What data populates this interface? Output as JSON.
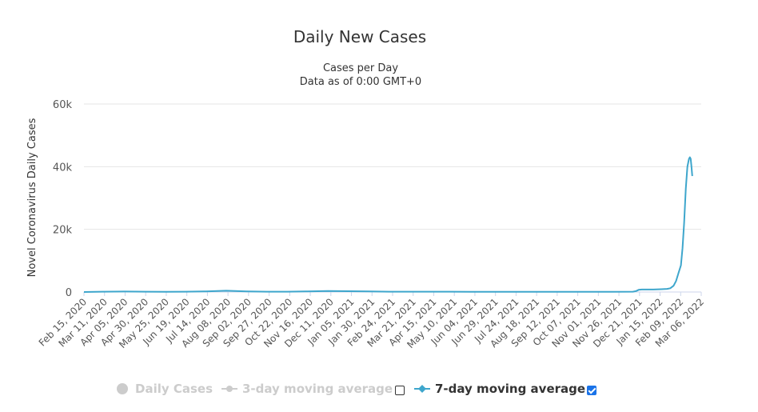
{
  "chart_data": {
    "type": "line",
    "title": "Daily New Cases",
    "subtitle_lines": [
      "Cases per Day",
      "Data as of 0:00 GMT+0"
    ],
    "ylabel": "Novel Coronavirus Daily Cases",
    "xlabel": "",
    "ylim": [
      0,
      60000
    ],
    "y_ticks": [
      0,
      20000,
      40000,
      60000
    ],
    "y_tick_labels": [
      "0",
      "20k",
      "40k",
      "60k"
    ],
    "x_range": [
      "2020-02-15",
      "2022-03-15"
    ],
    "x_tick_labels": [
      "Feb 15, 2020",
      "Mar 11, 2020",
      "Apr 05, 2020",
      "Apr 30, 2020",
      "May 25, 2020",
      "Jun 19, 2020",
      "Jul 14, 2020",
      "Aug 08, 2020",
      "Sep 02, 2020",
      "Sep 27, 2020",
      "Oct 22, 2020",
      "Nov 16, 2020",
      "Dec 11, 2020",
      "Jan 05, 2021",
      "Jan 30, 2021",
      "Feb 24, 2021",
      "Mar 21, 2021",
      "Apr 15, 2021",
      "May 10, 2021",
      "Jun 04, 2021",
      "Jun 29, 2021",
      "Jul 24, 2021",
      "Aug 18, 2021",
      "Sep 12, 2021",
      "Oct 07, 2021",
      "Nov 01, 2021",
      "Nov 26, 2021",
      "Dec 21, 2021",
      "Jan 15, 2022",
      "Feb 09, 2022",
      "Mar 06, 2022"
    ],
    "grid": true,
    "legend_position": "bottom",
    "series": [
      {
        "name": "7-day moving average",
        "color": "#3ea6cc",
        "visible": true,
        "points": [
          [
            "2020-02-15",
            0
          ],
          [
            "2020-03-11",
            100
          ],
          [
            "2020-04-05",
            150
          ],
          [
            "2020-04-30",
            100
          ],
          [
            "2020-05-25",
            80
          ],
          [
            "2020-06-19",
            100
          ],
          [
            "2020-07-14",
            200
          ],
          [
            "2020-08-08",
            400
          ],
          [
            "2020-09-02",
            200
          ],
          [
            "2020-09-27",
            100
          ],
          [
            "2020-10-22",
            100
          ],
          [
            "2020-11-16",
            200
          ],
          [
            "2020-12-11",
            300
          ],
          [
            "2021-01-05",
            250
          ],
          [
            "2021-01-30",
            200
          ],
          [
            "2021-02-24",
            100
          ],
          [
            "2021-03-21",
            100
          ],
          [
            "2021-04-15",
            100
          ],
          [
            "2021-05-10",
            100
          ],
          [
            "2021-06-04",
            80
          ],
          [
            "2021-06-29",
            80
          ],
          [
            "2021-07-24",
            80
          ],
          [
            "2021-08-18",
            80
          ],
          [
            "2021-09-12",
            80
          ],
          [
            "2021-10-07",
            80
          ],
          [
            "2021-11-01",
            80
          ],
          [
            "2021-11-26",
            80
          ],
          [
            "2021-12-21",
            100
          ],
          [
            "2021-12-25",
            300
          ],
          [
            "2021-12-28",
            700
          ],
          [
            "2022-01-01",
            800
          ],
          [
            "2022-01-15",
            800
          ],
          [
            "2022-01-25",
            900
          ],
          [
            "2022-02-01",
            1000
          ],
          [
            "2022-02-05",
            1200
          ],
          [
            "2022-02-09",
            2000
          ],
          [
            "2022-02-12",
            3500
          ],
          [
            "2022-02-15",
            6000
          ],
          [
            "2022-02-18",
            8500
          ],
          [
            "2022-02-20",
            14000
          ],
          [
            "2022-02-22",
            22000
          ],
          [
            "2022-02-24",
            33000
          ],
          [
            "2022-02-26",
            40000
          ],
          [
            "2022-02-28",
            42500
          ],
          [
            "2022-03-01",
            43000
          ],
          [
            "2022-03-02",
            42500
          ],
          [
            "2022-03-03",
            40000
          ],
          [
            "2022-03-04",
            37000
          ]
        ]
      }
    ]
  },
  "legend": {
    "daily_cases": "Daily Cases",
    "three_day": "3-day moving average",
    "seven_day": "7-day moving average",
    "three_day_checked": false,
    "seven_day_checked": true
  }
}
